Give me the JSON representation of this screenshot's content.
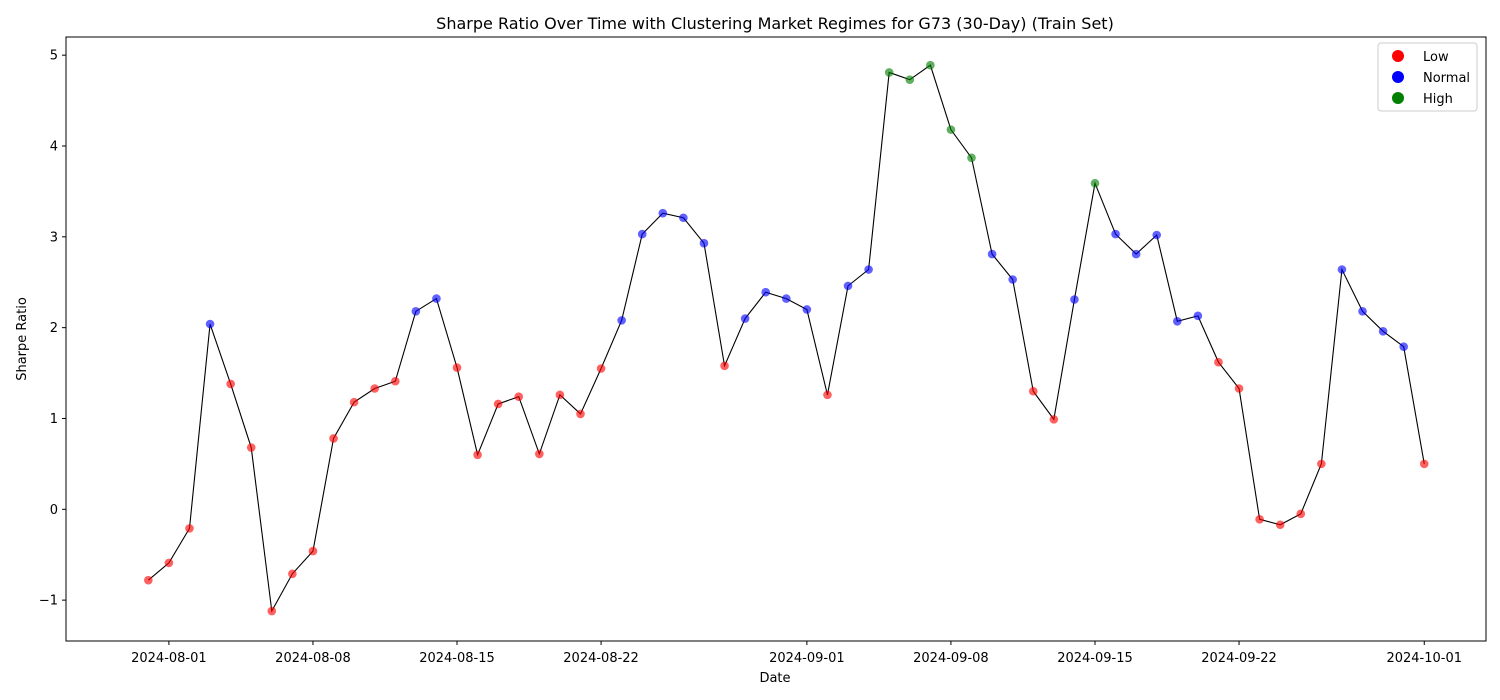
{
  "chart_data": {
    "type": "scatter",
    "title": "Sharpe Ratio Over Time with Clustering Market Regimes for G73 (30-Day) (Train Set)",
    "xlabel": "Date",
    "ylabel": "Sharpe Ratio",
    "xlim": [
      "2024-07-27",
      "2024-10-04"
    ],
    "ylim": [
      -1.45,
      5.2
    ],
    "x_ticks": [
      "2024-08-01",
      "2024-08-08",
      "2024-08-15",
      "2024-08-22",
      "2024-09-01",
      "2024-09-08",
      "2024-09-15",
      "2024-09-22",
      "2024-10-01"
    ],
    "y_ticks": [
      -1,
      0,
      1,
      2,
      3,
      4,
      5
    ],
    "y_tick_labels": [
      "−1",
      "0",
      "1",
      "2",
      "3",
      "4",
      "5"
    ],
    "grid": false,
    "legend_position": "top-right",
    "line_color": "#000000",
    "regime_colors": {
      "Low": "#ff0000",
      "Normal": "#0000ff",
      "High": "#008000"
    },
    "legend": [
      {
        "label": "Low",
        "regime": "Low"
      },
      {
        "label": "Normal",
        "regime": "Normal"
      },
      {
        "label": "High",
        "regime": "High"
      }
    ],
    "points": [
      {
        "date": "2024-07-31",
        "value": -0.78,
        "regime": "Low"
      },
      {
        "date": "2024-08-01",
        "value": -0.59,
        "regime": "Low"
      },
      {
        "date": "2024-08-02",
        "value": -0.21,
        "regime": "Low"
      },
      {
        "date": "2024-08-03",
        "value": 2.04,
        "regime": "Normal"
      },
      {
        "date": "2024-08-04",
        "value": 1.38,
        "regime": "Low"
      },
      {
        "date": "2024-08-05",
        "value": 0.68,
        "regime": "Low"
      },
      {
        "date": "2024-08-06",
        "value": -1.12,
        "regime": "Low"
      },
      {
        "date": "2024-08-07",
        "value": -0.71,
        "regime": "Low"
      },
      {
        "date": "2024-08-08",
        "value": -0.46,
        "regime": "Low"
      },
      {
        "date": "2024-08-09",
        "value": 0.78,
        "regime": "Low"
      },
      {
        "date": "2024-08-10",
        "value": 1.18,
        "regime": "Low"
      },
      {
        "date": "2024-08-11",
        "value": 1.33,
        "regime": "Low"
      },
      {
        "date": "2024-08-12",
        "value": 1.41,
        "regime": "Low"
      },
      {
        "date": "2024-08-13",
        "value": 2.18,
        "regime": "Normal"
      },
      {
        "date": "2024-08-14",
        "value": 2.32,
        "regime": "Normal"
      },
      {
        "date": "2024-08-15",
        "value": 1.56,
        "regime": "Low"
      },
      {
        "date": "2024-08-16",
        "value": 0.6,
        "regime": "Low"
      },
      {
        "date": "2024-08-17",
        "value": 1.16,
        "regime": "Low"
      },
      {
        "date": "2024-08-18",
        "value": 1.24,
        "regime": "Low"
      },
      {
        "date": "2024-08-19",
        "value": 0.61,
        "regime": "Low"
      },
      {
        "date": "2024-08-20",
        "value": 1.26,
        "regime": "Low"
      },
      {
        "date": "2024-08-21",
        "value": 1.05,
        "regime": "Low"
      },
      {
        "date": "2024-08-22",
        "value": 1.55,
        "regime": "Low"
      },
      {
        "date": "2024-08-23",
        "value": 2.08,
        "regime": "Normal"
      },
      {
        "date": "2024-08-24",
        "value": 3.03,
        "regime": "Normal"
      },
      {
        "date": "2024-08-25",
        "value": 3.26,
        "regime": "Normal"
      },
      {
        "date": "2024-08-26",
        "value": 3.21,
        "regime": "Normal"
      },
      {
        "date": "2024-08-27",
        "value": 2.93,
        "regime": "Normal"
      },
      {
        "date": "2024-08-28",
        "value": 1.58,
        "regime": "Low"
      },
      {
        "date": "2024-08-29",
        "value": 2.1,
        "regime": "Normal"
      },
      {
        "date": "2024-08-30",
        "value": 2.39,
        "regime": "Normal"
      },
      {
        "date": "2024-08-31",
        "value": 2.32,
        "regime": "Normal"
      },
      {
        "date": "2024-09-01",
        "value": 2.2,
        "regime": "Normal"
      },
      {
        "date": "2024-09-02",
        "value": 1.26,
        "regime": "Low"
      },
      {
        "date": "2024-09-03",
        "value": 2.46,
        "regime": "Normal"
      },
      {
        "date": "2024-09-04",
        "value": 2.64,
        "regime": "Normal"
      },
      {
        "date": "2024-09-05",
        "value": 4.81,
        "regime": "High"
      },
      {
        "date": "2024-09-06",
        "value": 4.73,
        "regime": "High"
      },
      {
        "date": "2024-09-07",
        "value": 4.89,
        "regime": "High"
      },
      {
        "date": "2024-09-08",
        "value": 4.18,
        "regime": "High"
      },
      {
        "date": "2024-09-09",
        "value": 3.87,
        "regime": "High"
      },
      {
        "date": "2024-09-10",
        "value": 2.81,
        "regime": "Normal"
      },
      {
        "date": "2024-09-11",
        "value": 2.53,
        "regime": "Normal"
      },
      {
        "date": "2024-09-12",
        "value": 1.3,
        "regime": "Low"
      },
      {
        "date": "2024-09-13",
        "value": 0.99,
        "regime": "Low"
      },
      {
        "date": "2024-09-14",
        "value": 2.31,
        "regime": "Normal"
      },
      {
        "date": "2024-09-15",
        "value": 3.59,
        "regime": "High"
      },
      {
        "date": "2024-09-16",
        "value": 3.03,
        "regime": "Normal"
      },
      {
        "date": "2024-09-17",
        "value": 2.81,
        "regime": "Normal"
      },
      {
        "date": "2024-09-18",
        "value": 3.02,
        "regime": "Normal"
      },
      {
        "date": "2024-09-19",
        "value": 2.07,
        "regime": "Normal"
      },
      {
        "date": "2024-09-20",
        "value": 2.13,
        "regime": "Normal"
      },
      {
        "date": "2024-09-21",
        "value": 1.62,
        "regime": "Low"
      },
      {
        "date": "2024-09-22",
        "value": 1.33,
        "regime": "Low"
      },
      {
        "date": "2024-09-23",
        "value": -0.11,
        "regime": "Low"
      },
      {
        "date": "2024-09-24",
        "value": -0.17,
        "regime": "Low"
      },
      {
        "date": "2024-09-25",
        "value": -0.05,
        "regime": "Low"
      },
      {
        "date": "2024-09-26",
        "value": 0.5,
        "regime": "Low"
      },
      {
        "date": "2024-09-27",
        "value": 2.64,
        "regime": "Normal"
      },
      {
        "date": "2024-09-28",
        "value": 2.18,
        "regime": "Normal"
      },
      {
        "date": "2024-09-29",
        "value": 1.96,
        "regime": "Normal"
      },
      {
        "date": "2024-09-30",
        "value": 1.79,
        "regime": "Normal"
      },
      {
        "date": "2024-10-01",
        "value": 0.5,
        "regime": "Low"
      }
    ]
  }
}
